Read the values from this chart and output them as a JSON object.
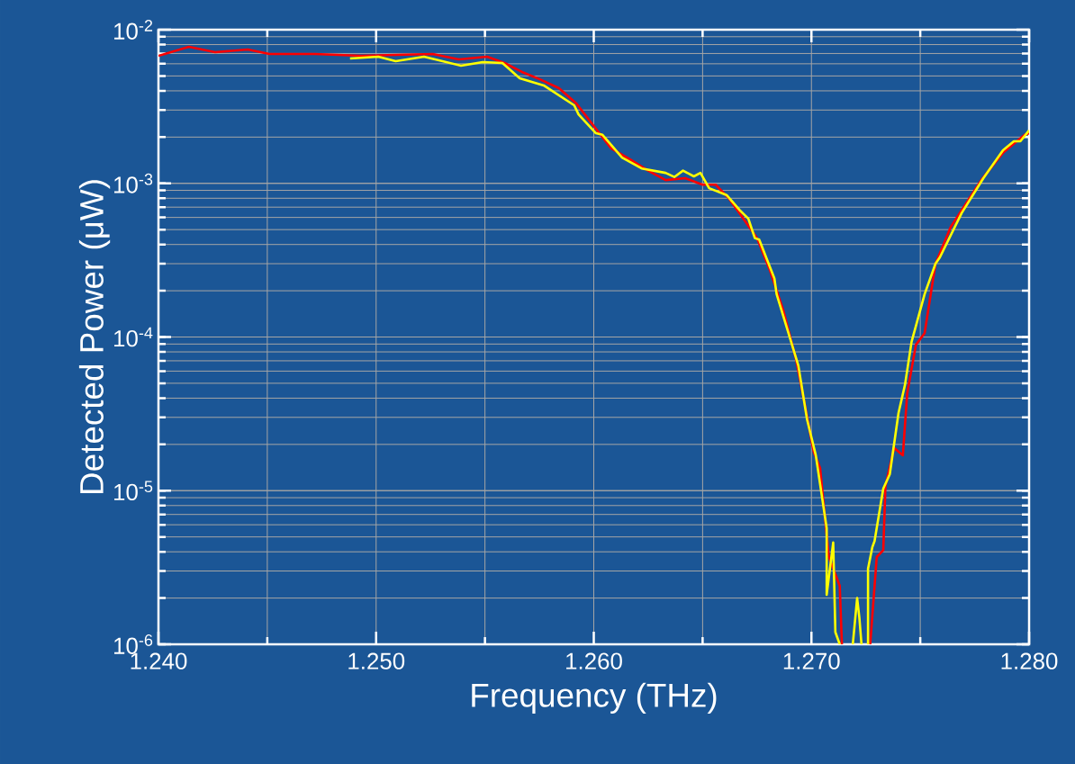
{
  "chart_data": {
    "type": "line",
    "xlabel": "Frequency (THz)",
    "ylabel": "Detected Power (μW)",
    "log": "y",
    "grid": true,
    "line_style": "solid",
    "marker": "none",
    "xlim": [
      1.24,
      1.28
    ],
    "ylim": [
      1e-06,
      0.01
    ],
    "xticks": [
      {
        "value": 1.24,
        "label": "1.240"
      },
      {
        "value": 1.25,
        "label": "1.250"
      },
      {
        "value": 1.26,
        "label": "1.260"
      },
      {
        "value": 1.27,
        "label": "1.270"
      },
      {
        "value": 1.28,
        "label": "1.280"
      }
    ],
    "yticks": [
      {
        "value": 1e-06,
        "label": "10$^{-6}$"
      },
      {
        "value": 1e-05,
        "label": "10$^{-5}$"
      },
      {
        "value": 0.0001,
        "label": "10$^{-4}$"
      },
      {
        "value": 0.001,
        "label": "10$^{-3}$"
      },
      {
        "value": 0.01,
        "label": "10$^{-2}$"
      }
    ],
    "series": [
      {
        "color": "#ff0000",
        "x": [
          1.24,
          1.2414,
          1.2426,
          1.2441,
          1.2451,
          1.2472,
          1.2493,
          1.2509,
          1.2526,
          1.2538,
          1.2551,
          1.2559,
          1.2567,
          1.2575,
          1.2584,
          1.2592,
          1.26,
          1.2608,
          1.2617,
          1.2625,
          1.2633,
          1.2642,
          1.265,
          1.2656,
          1.2662,
          1.2668,
          1.2675,
          1.2681,
          1.2687,
          1.2693,
          1.2697,
          1.2701,
          1.2704,
          1.2708,
          1.2713,
          1.2714,
          1.272,
          1.2727,
          1.273,
          1.2733,
          1.2734,
          1.2738,
          1.2742,
          1.2744,
          1.2748,
          1.2752,
          1.2757,
          1.2764,
          1.2778,
          1.2788,
          1.2798,
          1.28
        ],
        "values": [
          0.00676,
          0.00774,
          0.00714,
          0.00743,
          0.00695,
          0.00695,
          0.00676,
          0.00686,
          0.00695,
          0.00641,
          0.00667,
          0.00607,
          0.00531,
          0.00477,
          0.00416,
          0.00331,
          0.00236,
          0.00169,
          0.00142,
          0.00121,
          0.00105,
          0.00108,
          0.00098,
          0.00098,
          0.0008,
          0.00061,
          0.00044,
          0.00027,
          0.00015,
          7.1e-05,
          3.6e-05,
          1.8e-05,
          1.4e-05,
          3.7e-06,
          2.4e-06,
          1e-06,
          null,
          1e-06,
          3.7e-06,
          4.1e-06,
          1.07e-05,
          1.9e-05,
          1.7e-05,
          4.3e-05,
          8.9e-05,
          0.000106,
          0.0003,
          0.00052,
          0.00105,
          0.00158,
          0.00207,
          0.00212
        ]
      },
      {
        "color": "#ffff00",
        "x": [
          1.2488,
          1.2501,
          1.2509,
          1.2522,
          1.2539,
          1.2549,
          1.2558,
          1.2566,
          1.2577,
          1.2591,
          1.2593,
          1.2601,
          1.2604,
          1.2613,
          1.2622,
          1.2633,
          1.2637,
          1.2641,
          1.2646,
          1.2649,
          1.2653,
          1.2661,
          1.2667,
          1.2671,
          1.2674,
          1.2676,
          1.2683,
          1.2684,
          1.2694,
          1.2698,
          1.2702,
          1.2707,
          1.2707,
          1.271,
          1.2711,
          1.2713,
          1.2716,
          1.2719,
          1.2721,
          1.2722,
          1.2723,
          1.2725,
          1.2726,
          1.2726,
          1.2728,
          1.2729,
          1.2733,
          1.2736,
          1.274,
          1.2743,
          1.2746,
          1.2752,
          1.2757,
          1.2759,
          1.2769,
          1.2779,
          1.2788,
          1.2793,
          1.2796,
          1.28
        ],
        "values": [
          0.0065,
          0.00667,
          0.00624,
          0.00667,
          0.00583,
          0.00615,
          0.00607,
          0.00483,
          0.00434,
          0.00322,
          0.00281,
          0.00212,
          0.00207,
          0.00147,
          0.00125,
          0.00117,
          0.0011,
          0.00121,
          0.00111,
          0.00117,
          0.00093,
          0.00084,
          0.00067,
          0.00059,
          0.00044,
          0.00043,
          0.00024,
          0.00019,
          6.5e-05,
          2.9e-05,
          1.7e-05,
          5.7e-06,
          2.1e-06,
          4.6e-06,
          1.2e-06,
          1e-06,
          null,
          1e-06,
          2e-06,
          1.5e-06,
          1e-06,
          null,
          1e-06,
          3.1e-06,
          4.3e-06,
          4.7e-06,
          1.03e-05,
          1.28e-05,
          3.2e-05,
          4.9e-05,
          9.3e-05,
          0.00019,
          0.0003,
          0.00033,
          0.00064,
          0.00108,
          0.00164,
          0.00188,
          0.00188,
          0.00221
        ]
      }
    ]
  }
}
